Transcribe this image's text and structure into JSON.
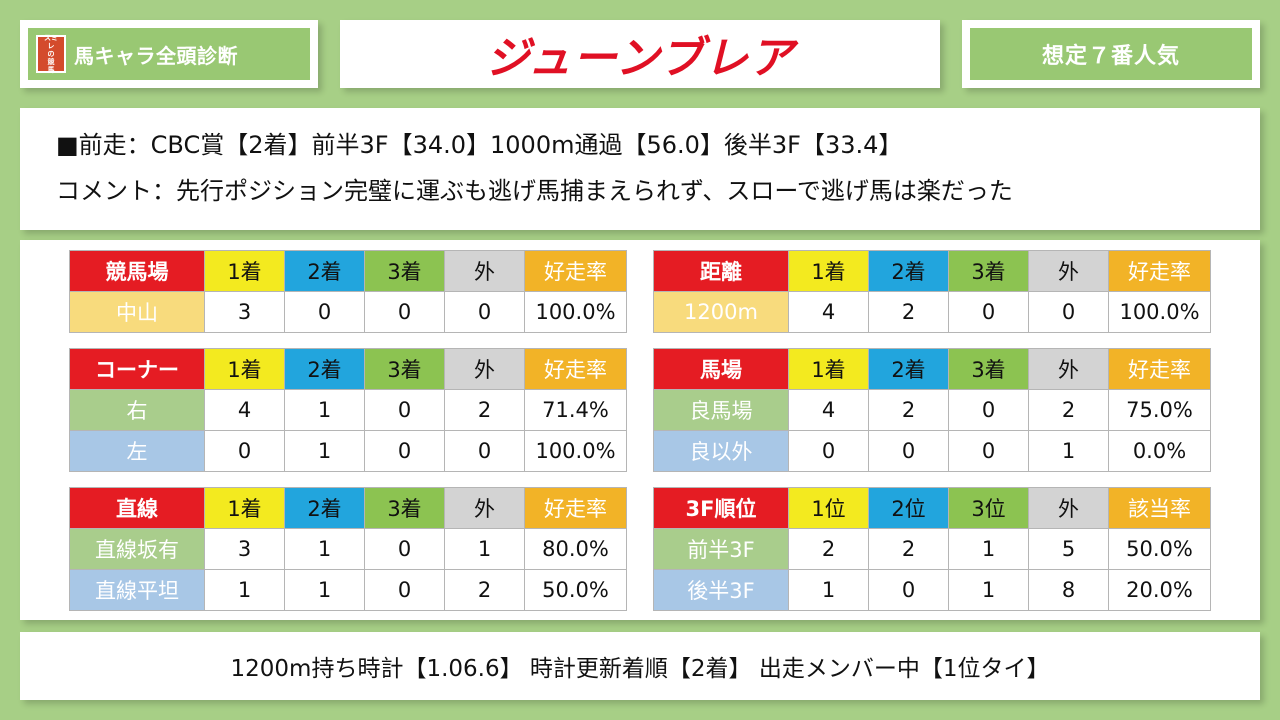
{
  "header": {
    "logo_text": [
      "スミ",
      "レ",
      "の",
      "競",
      "馬"
    ],
    "brand": "馬キャラ全頭診断",
    "title": "ジューンブレア",
    "popularity": "想定７番人気"
  },
  "info": {
    "line1": "■前走：CBC賞【2着】前半3F【34.0】1000m通過【56.0】後半3F【33.4】",
    "line2": "コメント：先行ポジション完璧に運ぶも逃げ馬捕まえられず、スローで逃げ馬は楽だった"
  },
  "tables": {
    "course": {
      "headers": [
        "競馬場",
        "1着",
        "2着",
        "3着",
        "外",
        "好走率"
      ],
      "rows": [
        {
          "label": "中山",
          "values": [
            "3",
            "0",
            "0",
            "0",
            "100.0%"
          ]
        }
      ]
    },
    "distance": {
      "headers": [
        "距離",
        "1着",
        "2着",
        "3着",
        "外",
        "好走率"
      ],
      "rows": [
        {
          "label": "1200m",
          "values": [
            "4",
            "2",
            "0",
            "0",
            "100.0%"
          ]
        }
      ]
    },
    "corner": {
      "headers": [
        "コーナー",
        "1着",
        "2着",
        "3着",
        "外",
        "好走率"
      ],
      "rows": [
        {
          "label": "右",
          "values": [
            "4",
            "1",
            "0",
            "2",
            "71.4%"
          ]
        },
        {
          "label": "左",
          "values": [
            "0",
            "1",
            "0",
            "0",
            "100.0%"
          ]
        }
      ]
    },
    "ground": {
      "headers": [
        "馬場",
        "1着",
        "2着",
        "3着",
        "外",
        "好走率"
      ],
      "rows": [
        {
          "label": "良馬場",
          "values": [
            "4",
            "2",
            "0",
            "2",
            "75.0%"
          ]
        },
        {
          "label": "良以外",
          "values": [
            "0",
            "0",
            "0",
            "1",
            "0.0%"
          ]
        }
      ]
    },
    "straight": {
      "headers": [
        "直線",
        "1着",
        "2着",
        "3着",
        "外",
        "好走率"
      ],
      "rows": [
        {
          "label": "直線坂有",
          "values": [
            "3",
            "1",
            "0",
            "1",
            "80.0%"
          ]
        },
        {
          "label": "直線平坦",
          "values": [
            "1",
            "1",
            "0",
            "2",
            "50.0%"
          ]
        }
      ]
    },
    "rank3f": {
      "headers": [
        "3F順位",
        "1位",
        "2位",
        "3位",
        "外",
        "該当率"
      ],
      "rows": [
        {
          "label": "前半3F",
          "values": [
            "2",
            "2",
            "1",
            "5",
            "50.0%"
          ]
        },
        {
          "label": "後半3F",
          "values": [
            "1",
            "0",
            "1",
            "8",
            "20.0%"
          ]
        }
      ]
    }
  },
  "footer": {
    "text": "1200m持ち時計【1.06.6】 時計更新着順【2着】 出走メンバー中【1位タイ】"
  },
  "colors": {
    "background": "#a7cf86",
    "title_red": "#e01024",
    "header_red": "#e51c23",
    "first_yellow": "#f3ea1f",
    "second_blue": "#22a5dd",
    "third_green": "#8cc351",
    "other_gray": "#d3d3d3",
    "rate_orange": "#f2b327"
  }
}
